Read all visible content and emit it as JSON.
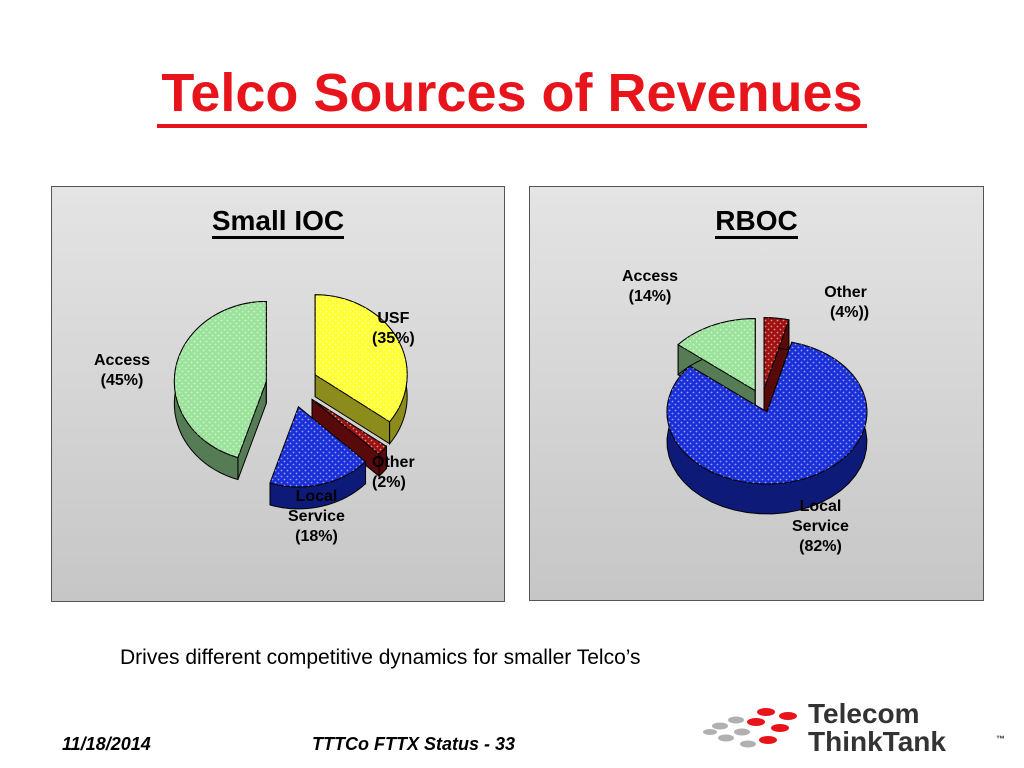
{
  "slide": {
    "title": "Telco Sources of Revenues",
    "caption": "Drives different competitive dynamics for smaller Telco’s",
    "footer_date": "11/18/2014",
    "footer_slide": "TTTCo FTTX Status - 33",
    "logo": {
      "line1": "Telecom",
      "line2": "ThinkTank",
      "tm": "™"
    }
  },
  "chart_data": [
    {
      "type": "pie",
      "title": "Small IOC",
      "slices": [
        {
          "name": "USF",
          "value": 35,
          "label": "(35%)",
          "color": "#ffff33"
        },
        {
          "name": "Other",
          "value": 2,
          "label": "(2%)",
          "color": "#a01010"
        },
        {
          "name": "Local Service",
          "value": 18,
          "label": "(18%)",
          "color": "#1a2fd8"
        },
        {
          "name": "Access",
          "value": 45,
          "label": "(45%)",
          "color": "#9be29b"
        }
      ],
      "labels": {
        "usf": [
          "USF",
          "(35%)"
        ],
        "other": [
          "Other",
          "(2%)"
        ],
        "local": [
          "Local",
          "Service",
          "(18%)"
        ],
        "access": [
          "Access",
          "(45%)"
        ]
      }
    },
    {
      "type": "pie",
      "title": "RBOC",
      "slices": [
        {
          "name": "Other",
          "value": 4,
          "label": "(4%))",
          "color": "#a01010"
        },
        {
          "name": "Local Service",
          "value": 82,
          "label": "(82%)",
          "color": "#1a2fd8"
        },
        {
          "name": "Access",
          "value": 14,
          "label": "(14%)",
          "color": "#9be29b"
        }
      ],
      "labels": {
        "access": [
          "Access",
          "(14%)"
        ],
        "other": [
          "Other",
          "(4%))"
        ],
        "local": [
          "Local",
          "Service",
          "(82%)"
        ]
      }
    }
  ]
}
